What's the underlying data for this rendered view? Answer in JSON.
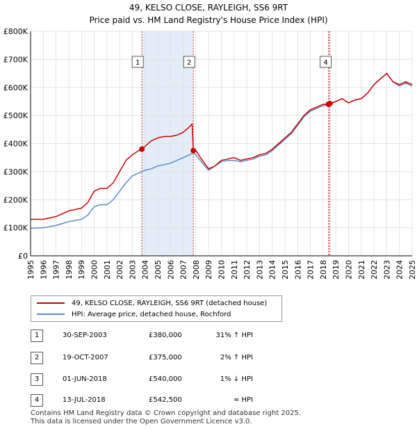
{
  "title_line1": "49, KELSO CLOSE, RAYLEIGH, SS6 9RT",
  "title_line2": "Price paid vs. HM Land Registry's House Price Index (HPI)",
  "colors": {
    "property": "#cc0000",
    "hpi": "#5b8bc9",
    "band": "#dce8f5",
    "marker_line": "#cc0000"
  },
  "chart_data": {
    "type": "line",
    "title": "Price paid vs. HM Land Registry's House Price Index (HPI)",
    "xlim": [
      1995,
      2025
    ],
    "ylim": [
      0,
      800000
    ],
    "yticks": [
      0,
      100000,
      200000,
      300000,
      400000,
      500000,
      600000,
      700000,
      800000
    ],
    "ytick_labels": [
      "£0",
      "£100K",
      "£200K",
      "£300K",
      "£400K",
      "£500K",
      "£600K",
      "£700K",
      "£800K"
    ],
    "xticks": [
      1995,
      1996,
      1997,
      1998,
      1999,
      2000,
      2001,
      2002,
      2003,
      2004,
      2005,
      2006,
      2007,
      2008,
      2009,
      2010,
      2011,
      2012,
      2013,
      2014,
      2015,
      2016,
      2017,
      2018,
      2019,
      2020,
      2021,
      2022,
      2023,
      2024,
      2025
    ],
    "xtick_labels": [
      "1995",
      "1996",
      "1997",
      "1998",
      "1999",
      "2000",
      "2001",
      "2002",
      "2003",
      "2004",
      "2005",
      "2006",
      "2007",
      "2008",
      "2009",
      "2010",
      "2011",
      "2012",
      "2013",
      "2014",
      "2015",
      "2016",
      "2017",
      "2018",
      "2019",
      "2020",
      "2021",
      "2022",
      "2023",
      "2024",
      "2025"
    ],
    "grid": true,
    "shaded_ranges": [
      [
        2003.75,
        2007.8
      ],
      [
        2018.42,
        2018.53
      ]
    ],
    "series": [
      {
        "name": "49, KELSO CLOSE, RAYLEIGH, SS6 9RT (detached house)",
        "color": "#cc0000",
        "x": [
          1995,
          1996,
          1997,
          1997.5,
          1998,
          1999,
          1999.5,
          2000,
          2000.5,
          2001,
          2001.5,
          2002,
          2002.5,
          2003,
          2003.5,
          2003.75,
          2004,
          2004.5,
          2005,
          2005.5,
          2006,
          2006.5,
          2007,
          2007.5,
          2007.7,
          2007.8,
          2008,
          2008.5,
          2009,
          2009.5,
          2010,
          2010.5,
          2011,
          2011.5,
          2012,
          2012.5,
          2013,
          2013.5,
          2014,
          2014.5,
          2015,
          2015.5,
          2016,
          2016.5,
          2017,
          2017.5,
          2018,
          2018.42,
          2018.53,
          2019,
          2019.5,
          2020,
          2020.5,
          2021,
          2021.5,
          2022,
          2022.5,
          2023,
          2023.5,
          2024,
          2024.5,
          2025
        ],
        "y": [
          130000,
          130000,
          140000,
          150000,
          160000,
          170000,
          190000,
          230000,
          240000,
          240000,
          260000,
          300000,
          340000,
          360000,
          375000,
          380000,
          390000,
          410000,
          420000,
          425000,
          425000,
          430000,
          440000,
          460000,
          470000,
          375000,
          375000,
          340000,
          310000,
          320000,
          340000,
          345000,
          350000,
          340000,
          345000,
          350000,
          360000,
          365000,
          380000,
          400000,
          420000,
          440000,
          470000,
          500000,
          520000,
          530000,
          540000,
          540000,
          542500,
          550000,
          560000,
          545000,
          555000,
          560000,
          580000,
          610000,
          630000,
          650000,
          620000,
          610000,
          620000,
          610000
        ]
      },
      {
        "name": "HPI: Average price, detached house, Rochford",
        "color": "#5b8bc9",
        "x": [
          1995,
          1996,
          1997,
          1997.5,
          1998,
          1999,
          1999.5,
          2000,
          2000.5,
          2001,
          2001.5,
          2002,
          2002.5,
          2003,
          2003.5,
          2004,
          2004.5,
          2005,
          2005.5,
          2006,
          2006.5,
          2007,
          2007.5,
          2007.8,
          2008,
          2008.5,
          2009,
          2009.5,
          2010,
          2010.5,
          2011,
          2011.5,
          2012,
          2012.5,
          2013,
          2013.5,
          2014,
          2014.5,
          2015,
          2015.5,
          2016,
          2016.5,
          2017,
          2017.5,
          2018,
          2018.5,
          2019,
          2019.5,
          2020,
          2020.5,
          2021,
          2021.5,
          2022,
          2022.5,
          2023,
          2023.5,
          2024,
          2024.5,
          2025
        ],
        "y": [
          98000,
          100000,
          108000,
          115000,
          122000,
          130000,
          145000,
          175000,
          182000,
          182000,
          200000,
          230000,
          260000,
          285000,
          295000,
          305000,
          310000,
          320000,
          325000,
          330000,
          340000,
          350000,
          360000,
          368000,
          360000,
          330000,
          305000,
          320000,
          335000,
          340000,
          340000,
          335000,
          340000,
          345000,
          355000,
          360000,
          375000,
          395000,
          415000,
          435000,
          465000,
          495000,
          515000,
          525000,
          535000,
          540000,
          550000,
          560000,
          545000,
          555000,
          560000,
          580000,
          610000,
          630000,
          650000,
          620000,
          605000,
          615000,
          605000
        ]
      }
    ],
    "transactions": [
      {
        "label": "1",
        "date": "30-SEP-2003",
        "x": 2003.75,
        "price": 380000,
        "price_label": "£380,000",
        "hpi_label": "31% ↑ HPI"
      },
      {
        "label": "2",
        "date": "19-OCT-2007",
        "x": 2007.8,
        "price": 375000,
        "price_label": "£375,000",
        "hpi_label": "2% ↑ HPI"
      },
      {
        "label": "3",
        "date": "01-JUN-2018",
        "x": 2018.42,
        "price": 540000,
        "price_label": "£540,000",
        "hpi_label": "1% ↓ HPI"
      },
      {
        "label": "4",
        "date": "13-JUL-2018",
        "x": 2018.53,
        "price": 542500,
        "price_label": "£542,500",
        "hpi_label": "≈ HPI"
      }
    ],
    "chart_boxes": [
      "1",
      "2",
      "4"
    ],
    "legend": [
      "49, KELSO CLOSE, RAYLEIGH, SS6 9RT (detached house)",
      "HPI: Average price, detached house, Rochford"
    ]
  },
  "footer_line1": "Contains HM Land Registry data © Crown copyright and database right 2025.",
  "footer_line2": "This data is licensed under the Open Government Licence v3.0."
}
